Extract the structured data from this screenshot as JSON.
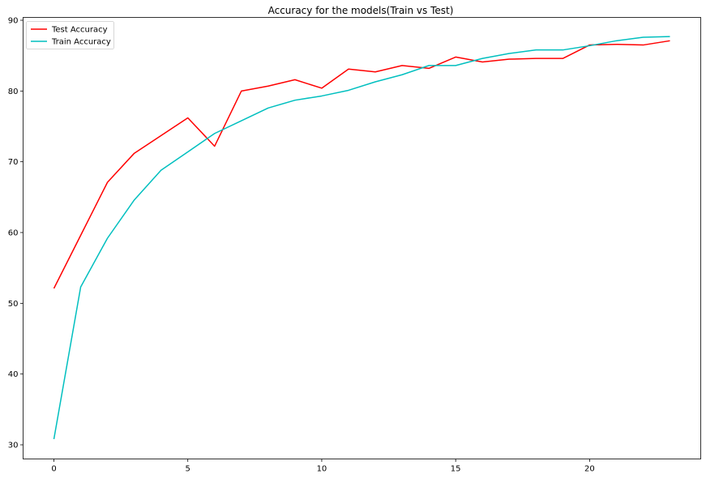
{
  "chart_data": {
    "type": "line",
    "title": "Accuracy for the models(Train vs Test)",
    "xlabel": "",
    "ylabel": "",
    "xlim": [
      -1.15,
      24.15
    ],
    "ylim": [
      28,
      90.4
    ],
    "xticks": [
      0,
      5,
      10,
      15,
      20
    ],
    "yticks": [
      30,
      40,
      50,
      60,
      70,
      80,
      90
    ],
    "grid": false,
    "legend_position": "top-left",
    "x": [
      0,
      1,
      2,
      3,
      4,
      5,
      6,
      7,
      8,
      9,
      10,
      11,
      12,
      13,
      14,
      15,
      16,
      17,
      18,
      19,
      20,
      21,
      22,
      23
    ],
    "series": [
      {
        "name": "Test Accuracy",
        "color": "#ff0000",
        "values": [
          52.1,
          59.6,
          67.1,
          71.2,
          73.7,
          76.2,
          72.2,
          80.0,
          80.7,
          81.6,
          80.4,
          83.1,
          82.7,
          83.6,
          83.2,
          84.8,
          84.1,
          84.5,
          84.6,
          84.6,
          86.5,
          86.6,
          86.5,
          87.1
        ]
      },
      {
        "name": "Train Accuracy",
        "color": "#00bfbf",
        "values": [
          30.8,
          52.3,
          59.2,
          64.6,
          68.8,
          71.4,
          74.0,
          75.8,
          77.6,
          78.7,
          79.3,
          80.1,
          81.3,
          82.3,
          83.6,
          83.6,
          84.6,
          85.3,
          85.8,
          85.8,
          86.4,
          87.1,
          87.6,
          87.7
        ]
      }
    ]
  }
}
